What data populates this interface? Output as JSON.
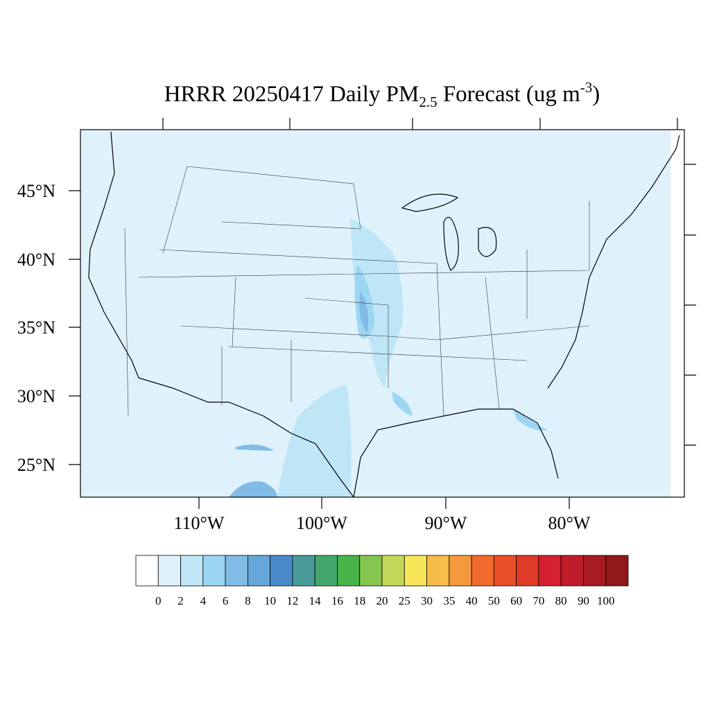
{
  "title": {
    "main": "HRRR 20250417 Daily PM",
    "sub": "2.5",
    "after": " Forecast (ug m",
    "sup": "-3",
    "close": ")"
  },
  "lat_labels": [
    "45°N",
    "40°N",
    "35°N",
    "30°N",
    "25°N"
  ],
  "lon_labels": [
    "110°W",
    "100°W",
    "90°W",
    "80°W"
  ],
  "colorbar": {
    "levels": [
      0,
      2,
      4,
      6,
      8,
      10,
      12,
      14,
      16,
      18,
      20,
      25,
      30,
      35,
      40,
      50,
      60,
      70,
      80,
      90,
      100
    ],
    "colors": [
      "#ffffff",
      "#dff2fb",
      "#bfe6f7",
      "#9dd6f3",
      "#80bce6",
      "#66a7da",
      "#4a8ac8",
      "#4a9a9a",
      "#45a66c",
      "#48b348",
      "#85c550",
      "#c4d65a",
      "#f7e65a",
      "#f6bc48",
      "#f49a3c",
      "#f06a2c",
      "#e84e2a",
      "#de3a26",
      "#d42030",
      "#c01c2a",
      "#a81a22",
      "#901818"
    ]
  }
}
